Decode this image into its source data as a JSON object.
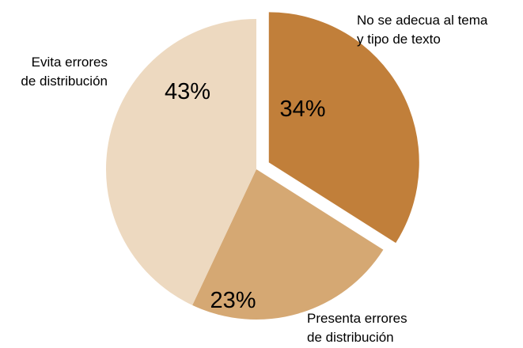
{
  "chart_data": {
    "type": "pie",
    "title": "",
    "slices": [
      {
        "label_lines": [
          "No se adecua al tema",
          "y tipo de texto"
        ],
        "value": 34,
        "value_label": "34%",
        "color": "#c17f3a",
        "exploded": true
      },
      {
        "label_lines": [
          "Presenta errores",
          "de distribución"
        ],
        "value": 23,
        "value_label": "23%",
        "color": "#d5a873",
        "exploded": false
      },
      {
        "label_lines": [
          "Evita errores",
          "de distribución"
        ],
        "value": 43,
        "value_label": "43%",
        "color": "#edd9c0",
        "exploded": false
      }
    ]
  }
}
